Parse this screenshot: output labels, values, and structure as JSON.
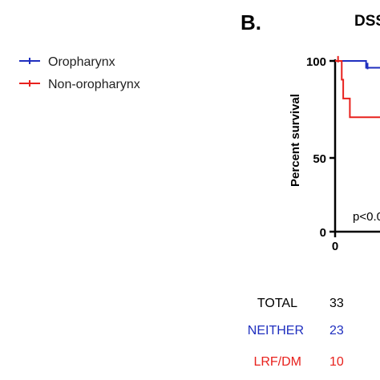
{
  "panel_label": "B.",
  "title": "DSS",
  "legend": [
    {
      "label": "Oropharynx",
      "color": "#1f2fbf"
    },
    {
      "label": "Non-oropharynx",
      "color": "#e8211d"
    }
  ],
  "annotation": "p<0.0",
  "table": {
    "rows": [
      {
        "label": "TOTAL",
        "value": "33",
        "color": "#000000"
      },
      {
        "label": "NEITHER",
        "value": "23",
        "color": "#1f2fbf"
      },
      {
        "label": "LRF/DM",
        "value": "10",
        "color": "#e8211d"
      }
    ]
  },
  "chart_data": {
    "type": "line",
    "title": "DSS",
    "ylabel": "Percent survival",
    "xlabel": "",
    "ylim": [
      0,
      100
    ],
    "yticks": [
      "0",
      "50",
      "100"
    ],
    "xticks": [
      "0"
    ],
    "xlim_visible": [
      0,
      10
    ],
    "series": [
      {
        "name": "Oropharynx",
        "color": "#1f2fbf",
        "steps": [
          [
            0,
            100
          ],
          [
            4.2,
            100
          ],
          [
            4.2,
            96
          ],
          [
            10,
            96
          ]
        ],
        "censor_ticks": [
          [
            4.4,
            97
          ]
        ]
      },
      {
        "name": "Non-oropharynx",
        "color": "#e8211d",
        "steps": [
          [
            0,
            100
          ],
          [
            0.9,
            100
          ],
          [
            0.9,
            89
          ],
          [
            1.1,
            89
          ],
          [
            1.1,
            78
          ],
          [
            2.0,
            78
          ],
          [
            2.0,
            67
          ],
          [
            10,
            67
          ]
        ],
        "censor_ticks": [
          [
            0.4,
            101
          ]
        ]
      }
    ]
  }
}
